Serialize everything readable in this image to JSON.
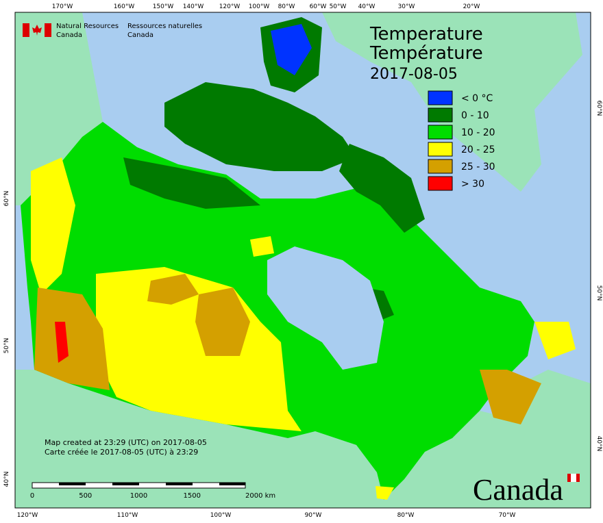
{
  "header": {
    "department_en": [
      "Natural Resources",
      "Canada"
    ],
    "department_fr": [
      "Ressources naturelles",
      "Canada"
    ]
  },
  "title": {
    "line1": "Temperature",
    "line2": "Température",
    "date": "2017-08-05"
  },
  "legend": [
    {
      "label": "< 0 °C",
      "color": "#0033ff"
    },
    {
      "label": "0 - 10",
      "color": "#007a00"
    },
    {
      "label": "10 - 20",
      "color": "#00dd00"
    },
    {
      "label": "20 - 25",
      "color": "#ffff00"
    },
    {
      "label": "25 - 30",
      "color": "#d4a000"
    },
    {
      "label": "> 30",
      "color": "#ff0000"
    }
  ],
  "graticule": {
    "top": [
      "170°W",
      "160°W",
      "150°W",
      "140°W",
      "120°W",
      "100°W",
      "80°W",
      "60°W",
      "50°W",
      "40°W",
      "30°W",
      "20°W"
    ],
    "bottom": [
      "120°W",
      "110°W",
      "100°W",
      "90°W",
      "80°W",
      "70°W"
    ],
    "left": [
      "60°N",
      "50°N",
      "40°N"
    ],
    "right": [
      "60°N",
      "50°N",
      "40°N"
    ]
  },
  "footnote": [
    "Map created at 23:29 (UTC) on 2017-08-05",
    "Carte créée le 2017-08-05 (UTC) à 23:29"
  ],
  "scale_bar": [
    "0",
    "500",
    "1000",
    "1500",
    "2000 km"
  ],
  "wordmark": "Canada"
}
